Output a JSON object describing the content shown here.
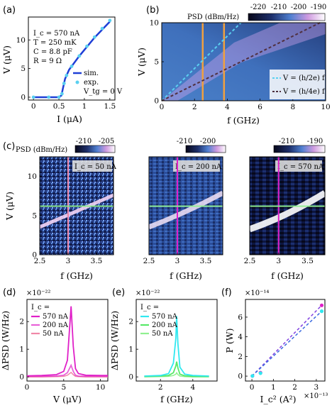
{
  "panel_labels": [
    "(a)",
    "(b)",
    "(c)",
    "(d)",
    "(e)",
    "(f)"
  ],
  "colors": {
    "sim": "#1f3fd6",
    "exp": "#5ad0f0",
    "orange": "#f0a040",
    "magenta": "#e020c8",
    "cyan": "#30e8f0",
    "green": "#58e868",
    "pink": "#f088a8",
    "dark_dash": "#503040",
    "light_green": "#90f090"
  },
  "chart_data": [
    {
      "id": "a",
      "type": "line",
      "xlabel": "I (μA)",
      "ylabel": "V (μV)",
      "xlim": [
        -0.1,
        1.6
      ],
      "ylim": [
        -0.5,
        14
      ],
      "xticks": [
        "0",
        "0.5",
        "1",
        "1.5"
      ],
      "yticks": [
        "0",
        "5",
        "10"
      ],
      "annotations": [
        "I_c = 570 nA",
        "T = 250 mK",
        "C = 8.8 pF",
        "R = 9 Ω"
      ],
      "series": [
        {
          "name": "sim.",
          "style": "line",
          "x": [
            0,
            0.3,
            0.5,
            0.55,
            0.58,
            0.62,
            0.7,
            0.9,
            1.2,
            1.5
          ],
          "y": [
            0,
            0,
            0,
            0.3,
            1.6,
            3.2,
            4.8,
            7.2,
            10.4,
            13.2
          ]
        },
        {
          "name": "exp.",
          "note": "V_tg = 0 V",
          "style": "markers",
          "x": [
            0,
            0.3,
            0.5,
            0.56,
            0.6,
            0.65,
            0.75,
            0.9,
            1.05,
            1.2,
            1.35,
            1.5
          ],
          "y": [
            0,
            0,
            0,
            0.6,
            2.4,
            3.8,
            5.4,
            7.2,
            8.9,
            10.5,
            12.0,
            13.4
          ]
        }
      ]
    },
    {
      "id": "b",
      "type": "heatmap",
      "xlabel": "f (GHz)",
      "ylabel": "V (μV)",
      "xlim": [
        0,
        10
      ],
      "ylim": [
        0,
        10
      ],
      "xticks": [
        "0",
        "2",
        "4",
        "6",
        "8",
        "10"
      ],
      "yticks": [
        "0",
        "5",
        "10"
      ],
      "colorbar": {
        "label": "PSD (dBm/Hz)",
        "ticks": [
          "-220",
          "-210",
          "-200",
          "-190"
        ]
      },
      "vertical_lines_GHz": [
        2.5,
        3.8
      ],
      "series": [
        {
          "name": "V = (h/2e) f",
          "style": "dashed",
          "x": [
            0,
            10
          ],
          "y": [
            0,
            20.7
          ]
        },
        {
          "name": "V = (h/4e) f",
          "style": "dashed",
          "x": [
            0,
            10
          ],
          "y": [
            0,
            10.35
          ]
        }
      ]
    },
    {
      "id": "c",
      "type": "heatmap",
      "colorbar_label": "PSD (dBm/Hz)",
      "subpanels": [
        {
          "ic": "I_c = 50 nA",
          "colorbar_ticks": [
            "-210",
            "-205"
          ],
          "xlabel": "f (GHz)",
          "ylabel": "V (μV)",
          "xticks": [
            "2.5",
            "3",
            "3.5"
          ],
          "yticks": [
            "0",
            "5",
            "10"
          ],
          "xlim": [
            2.5,
            3.8
          ],
          "ylim": [
            0,
            12.5
          ],
          "vline": 3.0,
          "hline": 6.2
        },
        {
          "ic": "I_c = 200 nA",
          "colorbar_ticks": [
            "-210",
            "-200"
          ],
          "xlabel": "f (GHz)",
          "xticks": [
            "2.5",
            "3",
            "3.5"
          ],
          "xlim": [
            2.5,
            3.8
          ],
          "ylim": [
            0,
            12.5
          ],
          "vline": 3.0,
          "hline": 6.2
        },
        {
          "ic": "I_c = 570 nA",
          "colorbar_ticks": [
            "-210",
            "-190"
          ],
          "xlabel": "f (GHz)",
          "xticks": [
            "2.5",
            "3",
            "3.5"
          ],
          "xlim": [
            2.5,
            3.8
          ],
          "ylim": [
            0,
            12.5
          ],
          "vline": 3.0,
          "hline": 6.2
        }
      ]
    },
    {
      "id": "d",
      "type": "line",
      "xlabel": "V (μV)",
      "ylabel": "ΔPSD (W/Hz)",
      "yexp": "×10⁻²²",
      "xlim": [
        0,
        11
      ],
      "ylim": [
        -0.15,
        2.8
      ],
      "xticks": [
        "0",
        "5",
        "10"
      ],
      "yticks": [
        "0",
        "1",
        "2"
      ],
      "legend_title": "I_c =",
      "series": [
        {
          "name": "570 nA",
          "x": [
            0,
            2,
            4,
            5,
            5.5,
            6,
            6.3,
            6.6,
            7,
            8,
            10,
            11
          ],
          "y": [
            0.04,
            0.05,
            0.08,
            0.2,
            0.6,
            2.55,
            1.1,
            0.3,
            0.12,
            0.06,
            0.05,
            0.05
          ]
        },
        {
          "name": "200 nA",
          "x": [
            0,
            2,
            4,
            5,
            5.5,
            6,
            6.3,
            6.6,
            7,
            8,
            10,
            11
          ],
          "y": [
            0.02,
            0.02,
            0.03,
            0.06,
            0.15,
            0.42,
            0.2,
            0.06,
            0.03,
            0.02,
            0.02,
            0.02
          ]
        },
        {
          "name": "50 nA",
          "x": [
            0,
            2,
            4,
            5,
            5.5,
            6,
            6.3,
            6.6,
            7,
            8,
            10,
            11
          ],
          "y": [
            0.0,
            0.0,
            0.01,
            0.02,
            0.06,
            0.16,
            0.08,
            0.02,
            0.01,
            0.0,
            0.0,
            0.0
          ]
        }
      ]
    },
    {
      "id": "e",
      "type": "line",
      "xlabel": "f (GHz)",
      "ylabel": "ΔPSD (W/Hz)",
      "yexp": "×10⁻²²",
      "xlim": [
        0.5,
        5.5
      ],
      "ylim": [
        -0.15,
        2.8
      ],
      "xticks": [
        "2",
        "4"
      ],
      "yticks": [
        "0",
        "1",
        "2"
      ],
      "legend_title": "I_c =",
      "series": [
        {
          "name": "570 nA",
          "x": [
            1,
            2,
            2.5,
            2.8,
            2.95,
            3.0,
            3.08,
            3.2,
            3.5,
            4,
            5
          ],
          "y": [
            0.03,
            0.05,
            0.12,
            0.5,
            1.4,
            2.2,
            1.2,
            0.35,
            0.1,
            0.05,
            0.03
          ]
        },
        {
          "name": "200 nA",
          "x": [
            1,
            2,
            2.5,
            2.8,
            2.95,
            3.0,
            3.08,
            3.2,
            3.5,
            4,
            5
          ],
          "y": [
            0.02,
            0.03,
            0.05,
            0.15,
            0.4,
            0.55,
            0.32,
            0.1,
            0.04,
            0.02,
            0.02
          ]
        },
        {
          "name": "50 nA",
          "x": [
            1,
            2,
            2.5,
            2.8,
            2.95,
            3.0,
            3.08,
            3.2,
            3.5,
            4,
            5
          ],
          "y": [
            0.0,
            0.01,
            0.02,
            0.05,
            0.1,
            0.15,
            0.08,
            0.03,
            0.01,
            0.0,
            0.0
          ]
        }
      ]
    },
    {
      "id": "f",
      "type": "scatter",
      "xlabel": "I_c² (A²)",
      "xexp": "×10⁻¹³",
      "ylabel": "P (W)",
      "yexp": "×10⁻¹⁴",
      "xlim": [
        -0.3,
        3.4
      ],
      "ylim": [
        -0.5,
        7.8
      ],
      "xticks": [
        "0",
        "1",
        "2",
        "3"
      ],
      "yticks": [
        "0",
        "2",
        "4",
        "6"
      ],
      "series": [
        {
          "name": "magenta",
          "x": [
            0.025,
            0.4,
            3.25
          ],
          "y": [
            0.02,
            0.35,
            7.2
          ]
        },
        {
          "name": "cyan",
          "x": [
            0.025,
            0.4,
            3.25
          ],
          "y": [
            0.02,
            0.3,
            6.6
          ]
        }
      ]
    }
  ]
}
